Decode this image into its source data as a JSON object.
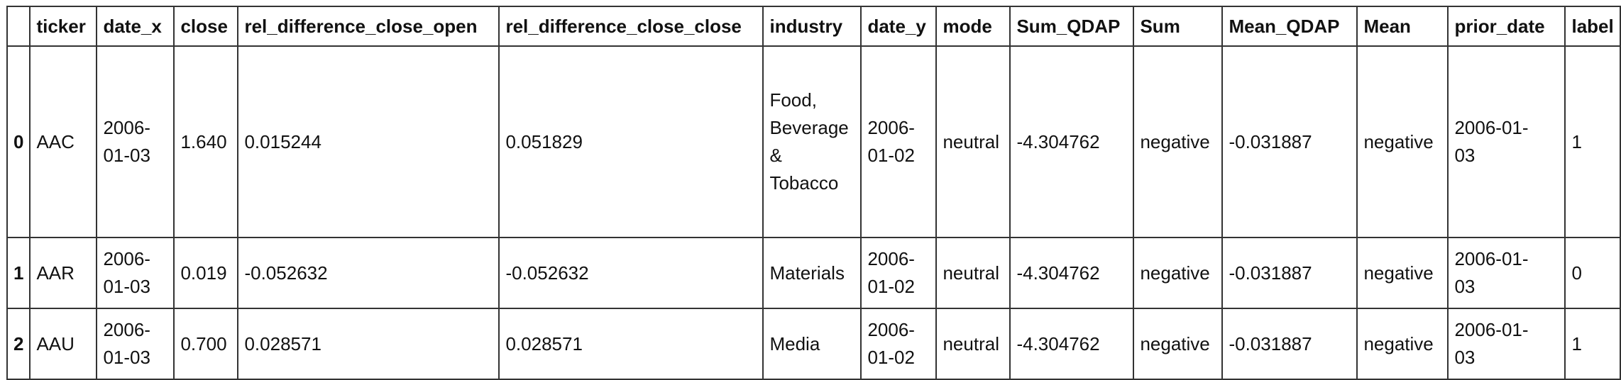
{
  "table": {
    "columns": [
      "",
      "ticker",
      "date_x",
      "close",
      "rel_difference_close_open",
      "rel_difference_close_close",
      "industry",
      "date_y",
      "mode",
      "Sum_QDAP",
      "Sum",
      "Mean_QDAP",
      "Mean",
      "prior_date",
      "label"
    ],
    "rows": [
      {
        "index": "0",
        "ticker": "AAC",
        "date_x": [
          "2006-",
          "01-03"
        ],
        "close": "1.640",
        "rel_difference_close_open": "0.015244",
        "rel_difference_close_close": "0.051829",
        "industry": [
          "Food,",
          "Beverage",
          "&",
          "Tobacco"
        ],
        "date_y": [
          "2006-",
          "01-02"
        ],
        "mode": "neutral",
        "Sum_QDAP": "-4.304762",
        "Sum": "negative",
        "Mean_QDAP": "-0.031887",
        "Mean": "negative",
        "prior_date": [
          "2006-01-",
          "03"
        ],
        "label": "1"
      },
      {
        "index": "1",
        "ticker": "AAR",
        "date_x": [
          "2006-",
          "01-03"
        ],
        "close": "0.019",
        "rel_difference_close_open": "-0.052632",
        "rel_difference_close_close": "-0.052632",
        "industry": [
          "Materials"
        ],
        "date_y": [
          "2006-",
          "01-02"
        ],
        "mode": "neutral",
        "Sum_QDAP": "-4.304762",
        "Sum": "negative",
        "Mean_QDAP": "-0.031887",
        "Mean": "negative",
        "prior_date": [
          "2006-01-",
          "03"
        ],
        "label": "0"
      },
      {
        "index": "2",
        "ticker": "AAU",
        "date_x": [
          "2006-",
          "01-03"
        ],
        "close": "0.700",
        "rel_difference_close_open": "0.028571",
        "rel_difference_close_close": "0.028571",
        "industry": [
          "Media"
        ],
        "date_y": [
          "2006-",
          "01-02"
        ],
        "mode": "neutral",
        "Sum_QDAP": "-4.304762",
        "Sum": "negative",
        "Mean_QDAP": "-0.031887",
        "Mean": "negative",
        "prior_date": [
          "2006-01-",
          "03"
        ],
        "label": "1"
      }
    ]
  }
}
